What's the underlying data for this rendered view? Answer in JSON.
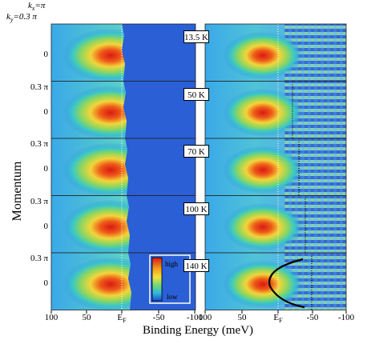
{
  "header": {
    "kx": "k",
    "kx_sub": "x",
    "kx_val": "=π",
    "ky": "k",
    "ky_sub": "y",
    "ky_val": "=0.3 π"
  },
  "axes": {
    "ylabel": "Momentum",
    "xlabel": "Binding Energy (meV)",
    "y_tick_top": "0.3 π",
    "y_tick_zero": "0",
    "x_ticks_left": [
      "100",
      "50",
      "E",
      "-50",
      "-100"
    ],
    "x_ticks_right": [
      "100",
      "50",
      "E",
      "-50",
      "-100"
    ],
    "ef_sub": "F"
  },
  "panels": [
    {
      "temp": "13.5 K"
    },
    {
      "temp": "50 K"
    },
    {
      "temp": "70 K"
    },
    {
      "temp": "100 K"
    },
    {
      "temp": "140 K"
    }
  ],
  "colorbar": {
    "high": "high",
    "low": "low"
  },
  "colors": {
    "background_blue": "#2a5fd6",
    "intensity_high": "#e0281e",
    "intensity_mid": "#f0e03c",
    "intensity_low": "#1f4fcf"
  }
}
